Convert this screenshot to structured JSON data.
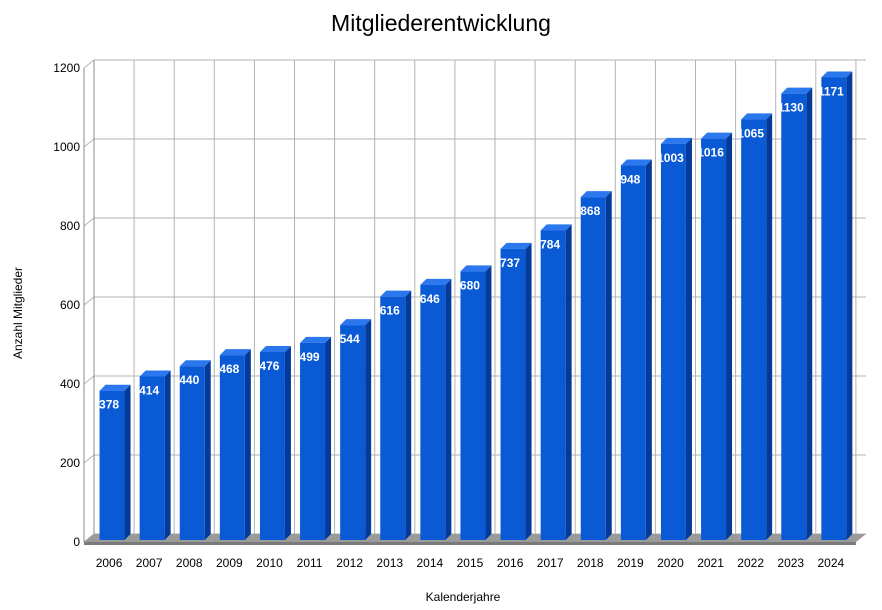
{
  "chart_data": {
    "type": "bar",
    "title": "Mitgliederentwicklung",
    "xlabel": "Kalenderjahre",
    "ylabel": "Anzahl Mitglieder",
    "categories": [
      "2006",
      "2007",
      "2008",
      "2009",
      "2010",
      "2011",
      "2012",
      "2013",
      "2014",
      "2015",
      "2016",
      "2017",
      "2018",
      "2019",
      "2020",
      "2021",
      "2022",
      "2023",
      "2024"
    ],
    "values": [
      378,
      414,
      440,
      468,
      476,
      499,
      544,
      616,
      646,
      680,
      737,
      784,
      868,
      948,
      1003,
      1016,
      1065,
      1130,
      1171
    ],
    "ylim": [
      0,
      1200
    ],
    "yticks": [
      0,
      200,
      400,
      600,
      800,
      1000,
      1200
    ],
    "grid": true,
    "legend": "none",
    "bar_style": "3d",
    "colors": {
      "bar_front": "#0a5ad6",
      "bar_side": "#043a9a",
      "bar_top": "#2a77ee",
      "floor": "#9a9a9a",
      "floor_shadow": "#7a7a7a",
      "grid": "#b3b3b3",
      "data_label": "#ffffff"
    }
  }
}
